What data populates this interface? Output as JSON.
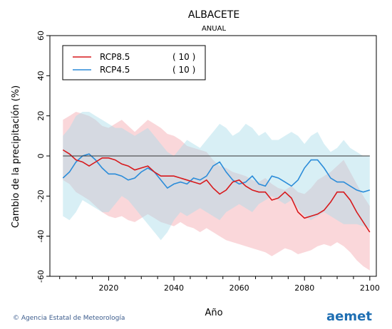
{
  "chart_data": {
    "type": "area",
    "title": "ALBACETE",
    "subtitle": "ANUAL",
    "xlabel": "Año",
    "ylabel": "Cambio de la precipitación (%)",
    "xlim": [
      2002,
      2102
    ],
    "ylim": [
      -60,
      60
    ],
    "xticks": [
      2020,
      2040,
      2060,
      2080,
      2100
    ],
    "yticks": [
      -60,
      -40,
      -20,
      0,
      20,
      40,
      60
    ],
    "legend_position": "top-left",
    "legend": [
      {
        "name": "RCP8.5",
        "count": "( 10 )",
        "color": "#d7191c"
      },
      {
        "name": "RCP4.5",
        "count": "( 10 )",
        "color": "#2b8cd9"
      }
    ],
    "x": [
      2006,
      2008,
      2010,
      2012,
      2014,
      2016,
      2018,
      2020,
      2022,
      2024,
      2026,
      2028,
      2030,
      2032,
      2034,
      2036,
      2038,
      2040,
      2042,
      2044,
      2046,
      2048,
      2050,
      2052,
      2054,
      2056,
      2058,
      2060,
      2062,
      2064,
      2066,
      2068,
      2070,
      2072,
      2074,
      2076,
      2078,
      2080,
      2082,
      2084,
      2086,
      2088,
      2090,
      2092,
      2094,
      2096,
      2098,
      2100
    ],
    "series": [
      {
        "name": "RCP8.5",
        "color": "#d7191c",
        "band_color": "#f4a6ae",
        "values": [
          3,
          1,
          -2,
          -3,
          -5,
          -3,
          -1,
          -1,
          -2,
          -4,
          -5,
          -7,
          -6,
          -5,
          -8,
          -10,
          -10,
          -10,
          -11,
          -12,
          -13,
          -14,
          -12,
          -16,
          -19,
          -17,
          -13,
          -12,
          -15,
          -17,
          -18,
          -18,
          -22,
          -21,
          -18,
          -21,
          -28,
          -31,
          -30,
          -29,
          -27,
          -23,
          -18,
          -18,
          -22,
          -28,
          -33,
          -38
        ],
        "upper": [
          18,
          20,
          22,
          21,
          20,
          18,
          15,
          14,
          16,
          18,
          15,
          12,
          15,
          18,
          16,
          14,
          11,
          10,
          8,
          5,
          4,
          3,
          2,
          -2,
          -5,
          -6,
          -8,
          -9,
          -10,
          -12,
          -13,
          -11,
          -14,
          -16,
          -17,
          -15,
          -18,
          -19,
          -16,
          -12,
          -10,
          -8,
          -5,
          -2,
          -8,
          -14,
          -20,
          -25
        ],
        "lower": [
          -12,
          -14,
          -18,
          -20,
          -22,
          -25,
          -28,
          -30,
          -31,
          -30,
          -32,
          -33,
          -31,
          -29,
          -31,
          -33,
          -34,
          -35,
          -33,
          -35,
          -36,
          -38,
          -36,
          -38,
          -40,
          -42,
          -43,
          -44,
          -45,
          -46,
          -47,
          -48,
          -50,
          -48,
          -46,
          -47,
          -49,
          -48,
          -47,
          -45,
          -44,
          -45,
          -43,
          -45,
          -48,
          -52,
          -55,
          -57
        ]
      },
      {
        "name": "RCP4.5",
        "color": "#2b8cd9",
        "band_color": "#a8dbe8",
        "values": [
          -11,
          -8,
          -3,
          0,
          1,
          -2,
          -6,
          -9,
          -9,
          -10,
          -12,
          -11,
          -8,
          -6,
          -8,
          -12,
          -16,
          -14,
          -13,
          -14,
          -11,
          -12,
          -10,
          -5,
          -3,
          -8,
          -12,
          -14,
          -13,
          -10,
          -14,
          -15,
          -10,
          -11,
          -13,
          -15,
          -12,
          -6,
          -2,
          -2,
          -6,
          -11,
          -13,
          -13,
          -15,
          -17,
          -18,
          -17
        ],
        "upper": [
          10,
          14,
          20,
          22,
          22,
          20,
          18,
          16,
          14,
          14,
          12,
          10,
          12,
          14,
          10,
          6,
          2,
          0,
          4,
          8,
          6,
          4,
          8,
          12,
          16,
          14,
          10,
          12,
          16,
          14,
          10,
          12,
          8,
          8,
          10,
          12,
          10,
          6,
          10,
          12,
          6,
          2,
          4,
          8,
          4,
          2,
          0,
          0
        ],
        "lower": [
          -30,
          -32,
          -28,
          -22,
          -24,
          -26,
          -28,
          -28,
          -24,
          -20,
          -22,
          -26,
          -30,
          -34,
          -38,
          -42,
          -38,
          -32,
          -28,
          -30,
          -28,
          -26,
          -28,
          -30,
          -32,
          -28,
          -26,
          -24,
          -26,
          -28,
          -24,
          -22,
          -20,
          -22,
          -24,
          -22,
          -26,
          -30,
          -32,
          -30,
          -28,
          -30,
          -32,
          -34,
          -34,
          -34,
          -35,
          -36
        ]
      }
    ]
  },
  "footer": {
    "credit": "© Agencia Estatal de Meteorología",
    "logo": "aemet"
  }
}
